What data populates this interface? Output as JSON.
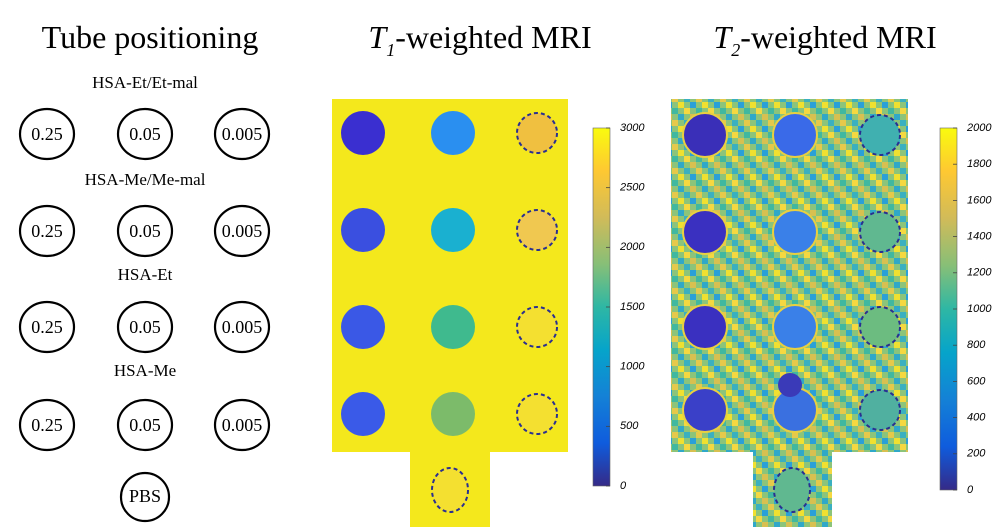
{
  "tube_positioning": {
    "title": "Tube positioning",
    "groups": [
      {
        "label": "HSA-Et/Et-mal",
        "tubes": [
          "0.25",
          "0.05",
          "0.005"
        ]
      },
      {
        "label": "HSA-Me/Me-mal",
        "tubes": [
          "0.25",
          "0.05",
          "0.005"
        ]
      },
      {
        "label": "HSA-Et",
        "tubes": [
          "0.25",
          "0.05",
          "0.005"
        ]
      },
      {
        "label": "HSA-Me",
        "tubes": [
          "0.25",
          "0.05",
          "0.005"
        ]
      }
    ],
    "control": "PBS"
  },
  "t1_map": {
    "title_symbol": "T",
    "title_subscript": "1",
    "title_rest": "-weighted MRI",
    "colorbar": {
      "lim": [
        0,
        3000
      ],
      "ticks": [
        0,
        500,
        1000,
        1500,
        2000,
        2500,
        3000
      ]
    }
  },
  "t2_map": {
    "title_symbol": "T",
    "title_subscript": "2",
    "title_rest": "-weighted MRI",
    "colorbar": {
      "lim": [
        0,
        2000
      ],
      "ticks": [
        0,
        200,
        400,
        600,
        800,
        1000,
        1200,
        1400,
        1600,
        1800,
        2000
      ]
    }
  }
}
